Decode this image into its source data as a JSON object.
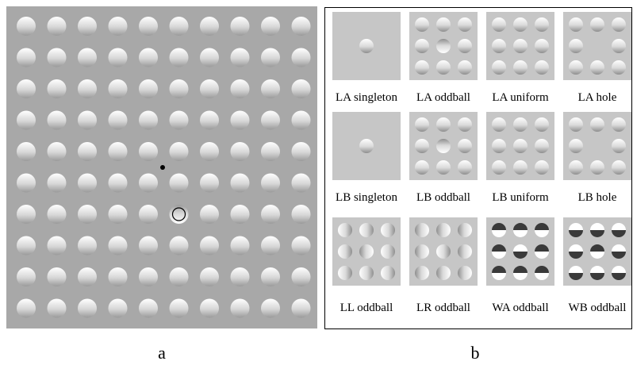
{
  "panel_a": {
    "label": "a",
    "grid": {
      "rows": 10,
      "cols": 10
    },
    "fixation_dot": true,
    "marked_target": {
      "row": 6,
      "col": 5,
      "note": "circled oddball (bottom-lit)"
    }
  },
  "panel_b": {
    "label": "b",
    "items": [
      {
        "caption": "LA singleton",
        "type": "singleton",
        "lit": "top"
      },
      {
        "caption": "LA oddball",
        "type": "oddball",
        "lit": "top"
      },
      {
        "caption": "LA uniform",
        "type": "uniform",
        "lit": "top"
      },
      {
        "caption": "LA hole",
        "type": "hole",
        "lit": "top"
      },
      {
        "caption": "LB singleton",
        "type": "singleton",
        "lit": "top"
      },
      {
        "caption": "LB oddball",
        "type": "oddball",
        "lit": "top"
      },
      {
        "caption": "LB uniform",
        "type": "uniform",
        "lit": "top"
      },
      {
        "caption": "LB hole",
        "type": "hole",
        "lit": "top"
      },
      {
        "caption": "LL oddball",
        "type": "oddball",
        "lit": "left"
      },
      {
        "caption": "LR oddball",
        "type": "oddball",
        "lit": "right"
      },
      {
        "caption": "WA oddball",
        "type": "oddball",
        "lit": "wa"
      },
      {
        "caption": "WB oddball",
        "type": "oddball",
        "lit": "wb"
      }
    ]
  },
  "colors": {
    "background_a": "#a8a8a8",
    "thumb_bg": "#c6c6c6",
    "dark_half": "#3a3a3a"
  }
}
